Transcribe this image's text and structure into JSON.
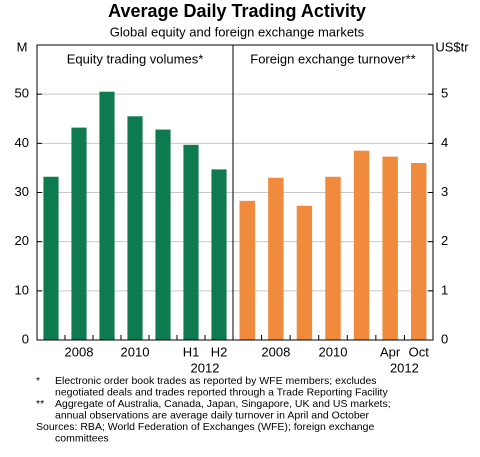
{
  "title": "Average Daily Trading Activity",
  "subtitle": "Global equity and foreign exchange markets",
  "notes": [
    {
      "marker": "*",
      "lines": [
        "Electronic order book trades as reported by WFE members; excludes",
        "negotiated deals and trades reported through a Trade Reporting Facility"
      ]
    },
    {
      "marker": "**",
      "lines": [
        "Aggregate of Australia, Canada, Japan, Singapore, UK and US markets;",
        "annual observations are average daily turnover in April and October"
      ]
    }
  ],
  "sources": [
    "Sources: RBA; World Federation of Exchanges (WFE); foreign exchange",
    "committees"
  ],
  "chart_data": [
    {
      "type": "bar",
      "title": "Equity trading volumes*",
      "y_label": "M",
      "axis_side": "left",
      "categories": [
        null,
        "2008",
        null,
        "2010",
        null,
        "H1",
        "H2"
      ],
      "category_group": "2012",
      "values": [
        33.2,
        43.2,
        50.5,
        45.5,
        42.8,
        39.7,
        34.7
      ],
      "color": "#0e7a4f",
      "ylim": [
        0,
        60
      ],
      "yticks": [
        0,
        10,
        20,
        30,
        40,
        50
      ],
      "grid": true
    },
    {
      "type": "bar",
      "title": "Foreign exchange turnover**",
      "y_label": "US$tr",
      "axis_side": "right",
      "categories": [
        null,
        "2008",
        null,
        "2010",
        null,
        "Apr",
        "Oct"
      ],
      "category_group": "2012",
      "values": [
        2.83,
        3.3,
        2.73,
        3.32,
        3.85,
        3.73,
        3.6
      ],
      "color": "#f08a3c",
      "ylim": [
        0,
        6
      ],
      "yticks": [
        0,
        1,
        2,
        3,
        4,
        5
      ],
      "grid": true
    }
  ]
}
